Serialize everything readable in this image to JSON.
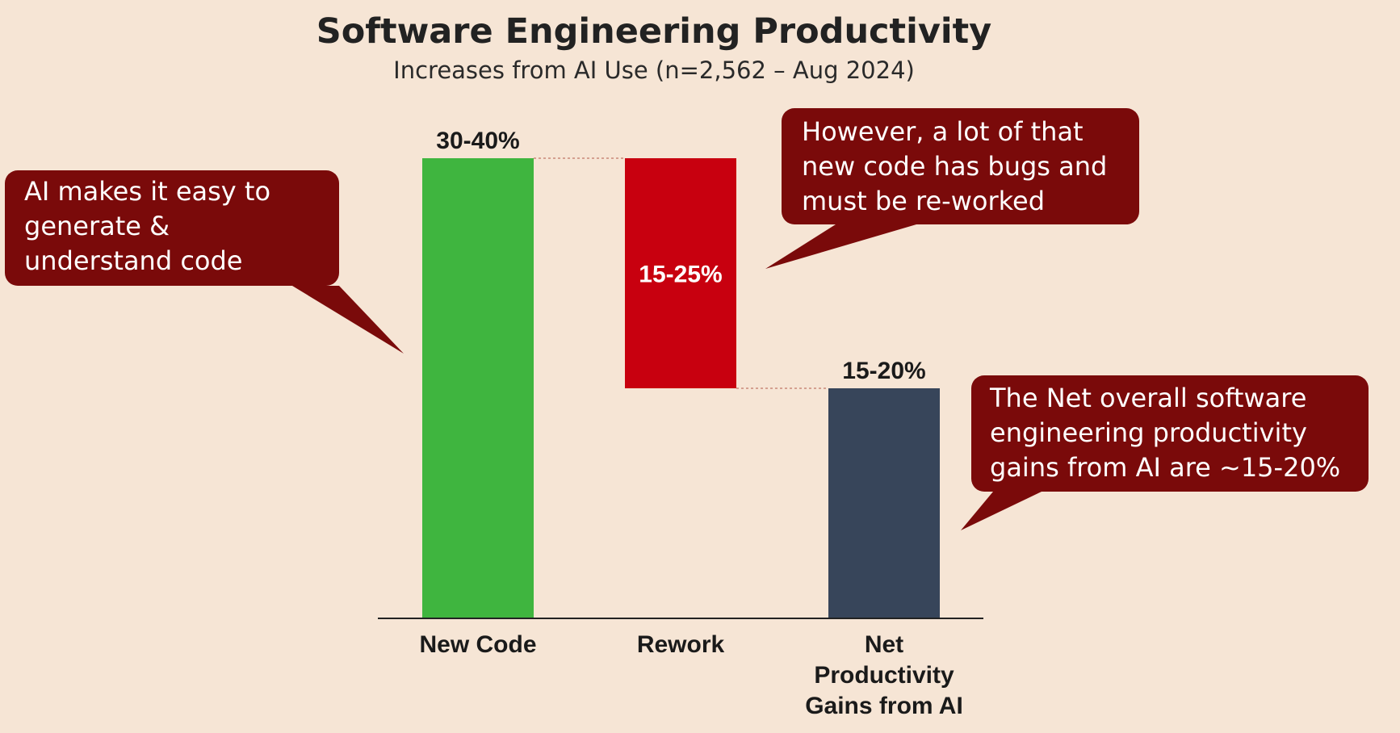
{
  "title": "Software Engineering Productivity",
  "subtitle": "Increases from AI Use (n=2,562 – Aug 2024)",
  "colors": {
    "background": "#f6e5d5",
    "new_code": "#3fb53f",
    "rework": "#c8000f",
    "net": "#37455a",
    "callout": "#7a0a0a"
  },
  "chart_data": {
    "type": "bar",
    "subtype": "waterfall",
    "categories": [
      "New Code",
      "Rework",
      "Net Productivity Gains from AI"
    ],
    "category_label_lines": [
      [
        "New Code"
      ],
      [
        "Rework"
      ],
      [
        "Net",
        "Productivity",
        "Gains from AI"
      ]
    ],
    "ranges": [
      {
        "category": "New Code",
        "label": "30-40%",
        "low": 0,
        "high": 40
      },
      {
        "category": "Rework",
        "label": "15-25%",
        "low": 20,
        "high": 40
      },
      {
        "category": "Net Productivity Gains from AI",
        "label": "15-20%",
        "low": 0,
        "high": 20
      }
    ],
    "ylim": [
      0,
      40
    ],
    "grid": false,
    "legend": "none"
  },
  "callouts": [
    {
      "id": "left",
      "lines": [
        "AI makes it easy to",
        "generate &",
        "understand code"
      ]
    },
    {
      "id": "top-right",
      "lines": [
        "However, a lot of that",
        "new code has bugs and",
        "must be re-worked"
      ]
    },
    {
      "id": "bottom-right",
      "lines": [
        "The Net overall software",
        "engineering productivity",
        "gains from AI are ~15-20%"
      ]
    }
  ]
}
